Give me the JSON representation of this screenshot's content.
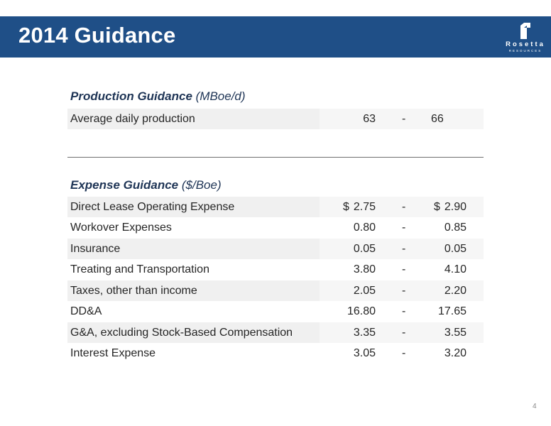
{
  "header": {
    "title": "2014 Guidance",
    "bg_color": "#1f4f87"
  },
  "logo": {
    "icon": "rosetta-logo-icon",
    "word": "Rosetta",
    "sub": "RESOURCES"
  },
  "production": {
    "title": "Production Guidance",
    "unit": "(MBoe/d)",
    "rows": [
      {
        "label": "Average daily production",
        "low": "63",
        "dash": "-",
        "high": "66"
      }
    ]
  },
  "expense": {
    "title": "Expense Guidance",
    "unit": "($/Boe)",
    "rows": [
      {
        "label": "Direct Lease Operating Expense",
        "low_cur": "$",
        "low": "2.75",
        "dash": "-",
        "high_cur": "$",
        "high": "2.90"
      },
      {
        "label": "Workover Expenses",
        "low": "0.80",
        "dash": "-",
        "high": "0.85"
      },
      {
        "label": "Insurance",
        "low": "0.05",
        "dash": "-",
        "high": "0.05"
      },
      {
        "label": "Treating and Transportation",
        "low": "3.80",
        "dash": "-",
        "high": "4.10"
      },
      {
        "label": "Taxes, other than income",
        "low": "2.05",
        "dash": "-",
        "high": "2.20"
      },
      {
        "label": "DD&A",
        "low": "16.80",
        "dash": "-",
        "high": "17.65"
      },
      {
        "label": "G&A, excluding Stock-Based Compensation",
        "low": "3.35",
        "dash": "-",
        "high": "3.55"
      },
      {
        "label": "Interest Expense",
        "low": "3.05",
        "dash": "-",
        "high": "3.20"
      }
    ]
  },
  "page_number": "4"
}
